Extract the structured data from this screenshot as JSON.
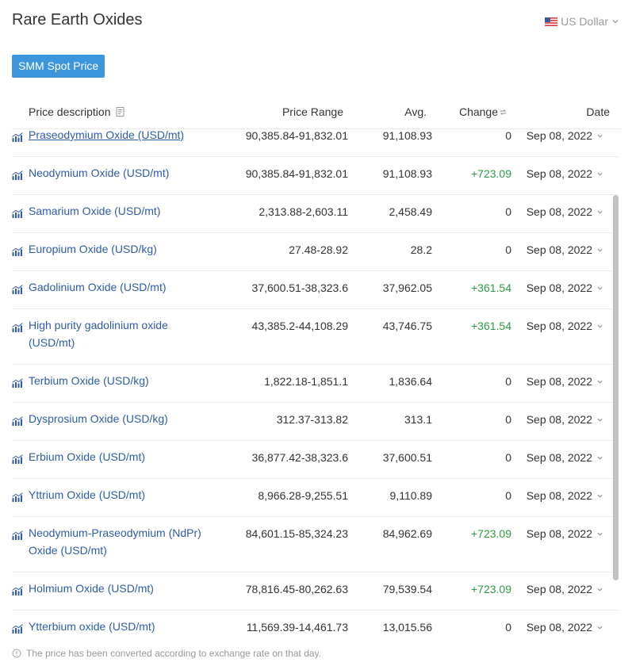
{
  "page": {
    "title": "Rare Earth Oxides",
    "currency": "US Dollar",
    "tab_label": "SMM Spot Price",
    "note": "The price has been converted according to exchange rate on that day."
  },
  "colors": {
    "accent": "#3b96de",
    "link": "#2e5caa",
    "positive": "#2e9a46"
  },
  "columns": {
    "description": "Price description",
    "range": "Price Range",
    "avg": "Avg.",
    "change": "Change",
    "date": "Date"
  },
  "rows": [
    {
      "name": "Praseodymium Oxide (USD/mt)",
      "range": "90,385.84-91,832.01",
      "avg": "91,108.93",
      "change": "0",
      "date": "Sep 08, 2022"
    },
    {
      "name": "Neodymium Oxide (USD/mt)",
      "range": "90,385.84-91,832.01",
      "avg": "91,108.93",
      "change": "+723.09",
      "date": "Sep 08, 2022"
    },
    {
      "name": "Samarium Oxide (USD/mt)",
      "range": "2,313.88-2,603.11",
      "avg": "2,458.49",
      "change": "0",
      "date": "Sep 08, 2022"
    },
    {
      "name": "Europium Oxide (USD/kg)",
      "range": "27.48-28.92",
      "avg": "28.2",
      "change": "0",
      "date": "Sep 08, 2022"
    },
    {
      "name": "Gadolinium Oxide (USD/mt)",
      "range": "37,600.51-38,323.6",
      "avg": "37,962.05",
      "change": "+361.54",
      "date": "Sep 08, 2022"
    },
    {
      "name": "High purity gadolinium oxide (USD/mt)",
      "range": "43,385.2-44,108.29",
      "avg": "43,746.75",
      "change": "+361.54",
      "date": "Sep 08, 2022"
    },
    {
      "name": "Terbium Oxide (USD/kg)",
      "range": "1,822.18-1,851.1",
      "avg": "1,836.64",
      "change": "0",
      "date": "Sep 08, 2022"
    },
    {
      "name": "Dysprosium Oxide (USD/kg)",
      "range": "312.37-313.82",
      "avg": "313.1",
      "change": "0",
      "date": "Sep 08, 2022"
    },
    {
      "name": "Erbium Oxide (USD/mt)",
      "range": "36,877.42-38,323.6",
      "avg": "37,600.51",
      "change": "0",
      "date": "Sep 08, 2022"
    },
    {
      "name": "Yttrium Oxide (USD/mt)",
      "range": "8,966.28-9,255.51",
      "avg": "9,110.89",
      "change": "0",
      "date": "Sep 08, 2022"
    },
    {
      "name": "Neodymium-Praseodymium (NdPr) Oxide (USD/mt)",
      "range": "84,601.15-85,324.23",
      "avg": "84,962.69",
      "change": "+723.09",
      "date": "Sep 08, 2022"
    },
    {
      "name": "Holmium Oxide (USD/mt)",
      "range": "78,816.45-80,262.63",
      "avg": "79,539.54",
      "change": "+723.09",
      "date": "Sep 08, 2022"
    },
    {
      "name": "Ytterbium oxide (USD/mt)",
      "range": "11,569.39-14,461.73",
      "avg": "13,015.56",
      "change": "0",
      "date": "Sep 08, 2022"
    }
  ]
}
